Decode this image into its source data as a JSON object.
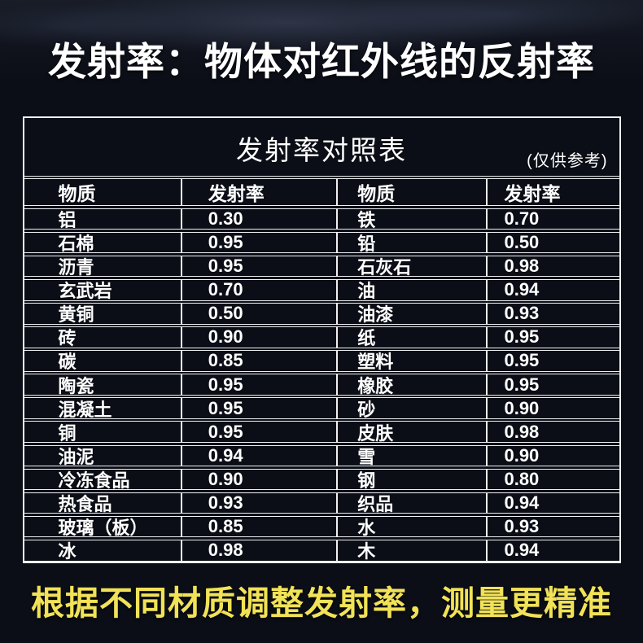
{
  "page": {
    "main_title": "发射率：物体对红外线的反射率",
    "footer_note": "根据不同材质调整发射率，测量更精准"
  },
  "colors": {
    "background": "#0b0e16",
    "top_haze": "#39425a",
    "text": "#ffffff",
    "table_grid": "#eef0f3",
    "footer_accent": "#f1e257"
  },
  "chart_data": {
    "type": "table",
    "title": "发射率对照表",
    "note": "(仅供参考)",
    "columns": [
      "物质",
      "发射率",
      "物质",
      "发射率"
    ],
    "rows": [
      [
        "铝",
        "0.30",
        "铁",
        "0.70"
      ],
      [
        "石棉",
        "0.95",
        "铅",
        "0.50"
      ],
      [
        "沥青",
        "0.95",
        "石灰石",
        "0.98"
      ],
      [
        "玄武岩",
        "0.70",
        "油",
        "0.94"
      ],
      [
        "黄铜",
        "0.50",
        "油漆",
        "0.93"
      ],
      [
        "砖",
        "0.90",
        "纸",
        "0.95"
      ],
      [
        "碳",
        "0.85",
        "塑料",
        "0.95"
      ],
      [
        "陶瓷",
        "0.95",
        "橡胶",
        "0.95"
      ],
      [
        "混凝土",
        "0.95",
        "砂",
        "0.90"
      ],
      [
        "铜",
        "0.95",
        "皮肤",
        "0.98"
      ],
      [
        "油泥",
        "0.94",
        "雪",
        "0.90"
      ],
      [
        "冷冻食品",
        "0.90",
        "钢",
        "0.80"
      ],
      [
        "热食品",
        "0.93",
        "织品",
        "0.94"
      ],
      [
        "玻璃（板）",
        "0.85",
        "水",
        "0.93"
      ],
      [
        "冰",
        "0.98",
        "木",
        "0.94"
      ]
    ]
  }
}
